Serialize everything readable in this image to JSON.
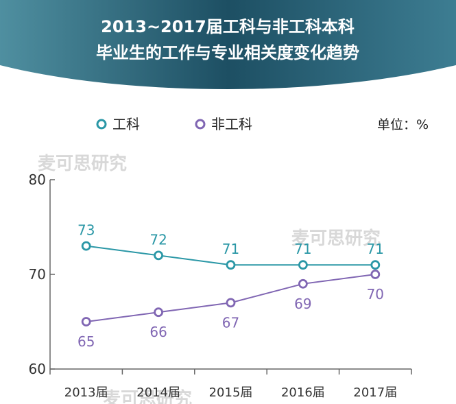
{
  "chart_data": {
    "type": "line",
    "title_lines": [
      "2013~2017届工科与非工科本科",
      "毕业生的工作与专业相关度变化趋势"
    ],
    "unit_label": "单位：%",
    "watermark": "麦可思研究",
    "categories": [
      "2013届",
      "2014届",
      "2015届",
      "2016届",
      "2017届"
    ],
    "series": [
      {
        "name": "工科",
        "values": [
          73,
          72,
          71,
          71,
          71
        ],
        "color": "#2a97a6"
      },
      {
        "name": "非工科",
        "values": [
          65,
          66,
          67,
          69,
          70
        ],
        "color": "#8066b3"
      }
    ],
    "ylim": [
      60,
      80
    ],
    "yticks": [
      60,
      70,
      80
    ],
    "legend_position": "top-left",
    "grid": false,
    "xlabel": "",
    "ylabel": ""
  }
}
